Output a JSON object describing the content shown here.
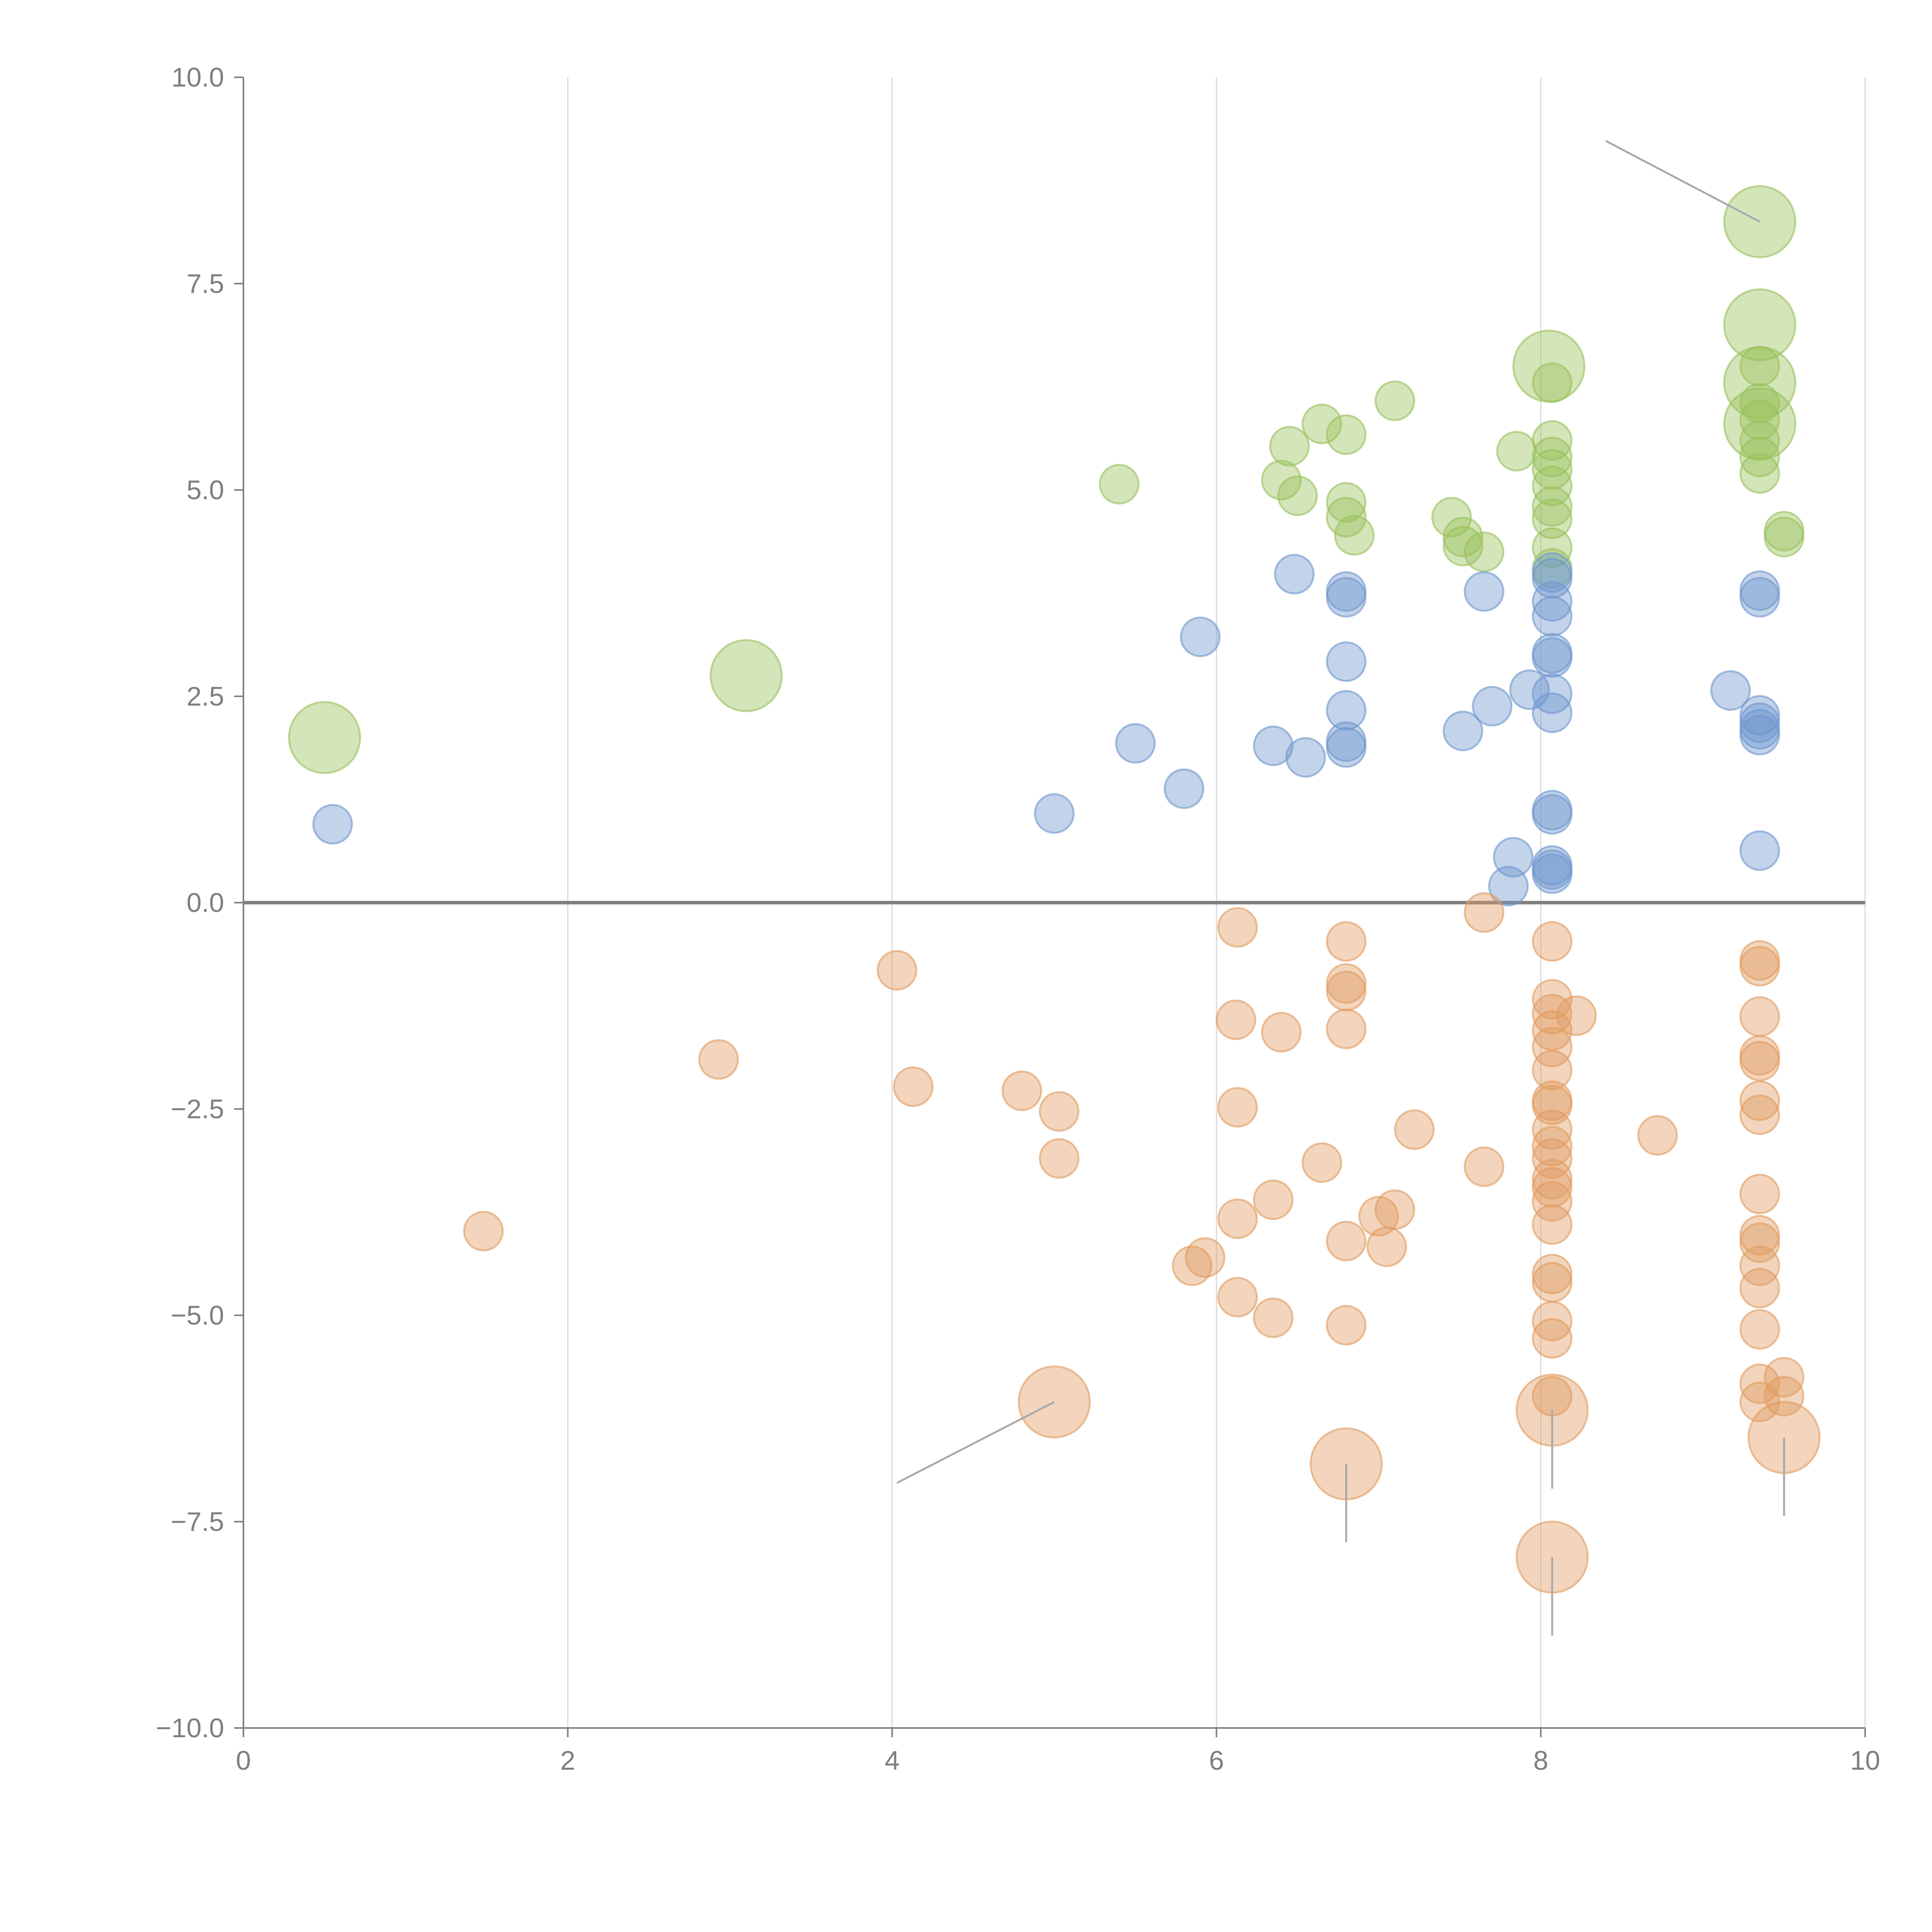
{
  "chart_data": {
    "type": "scatter",
    "title": "",
    "xlabel": "",
    "ylabel": "",
    "xlim": [
      0,
      10
    ],
    "ylim": [
      -10,
      10
    ],
    "x_ticks": [
      "0",
      "2",
      "4",
      "6",
      "8",
      "10"
    ],
    "y_ticks": [
      "10.0",
      "7.5",
      "5.0",
      "2.5",
      "0.0",
      "−2.5",
      "−5.0",
      "−7.5",
      "−10.0"
    ],
    "grid": "vertical",
    "reference_line_y": 0,
    "series": [
      {
        "name": "green",
        "color": "#98c05a",
        "points": [
          {
            "x": 0.5,
            "y": 2.0,
            "size": 2
          },
          {
            "x": 3.1,
            "y": 2.75,
            "size": 2
          },
          {
            "x": 5.4,
            "y": 5.07,
            "size": 1
          },
          {
            "x": 6.4,
            "y": 5.12,
            "size": 1
          },
          {
            "x": 6.45,
            "y": 5.53,
            "size": 1
          },
          {
            "x": 6.5,
            "y": 4.93,
            "size": 1
          },
          {
            "x": 6.65,
            "y": 5.8,
            "size": 1
          },
          {
            "x": 6.8,
            "y": 5.67,
            "size": 1
          },
          {
            "x": 6.8,
            "y": 4.85,
            "size": 1
          },
          {
            "x": 6.8,
            "y": 4.67,
            "size": 1
          },
          {
            "x": 6.85,
            "y": 4.45,
            "size": 1
          },
          {
            "x": 7.1,
            "y": 6.08,
            "size": 1
          },
          {
            "x": 7.45,
            "y": 4.67,
            "size": 1
          },
          {
            "x": 7.52,
            "y": 4.43,
            "size": 1
          },
          {
            "x": 7.52,
            "y": 4.32,
            "size": 1
          },
          {
            "x": 7.65,
            "y": 4.25,
            "size": 1
          },
          {
            "x": 7.85,
            "y": 5.47,
            "size": 1
          },
          {
            "x": 8.05,
            "y": 6.5,
            "size": 2
          },
          {
            "x": 8.07,
            "y": 6.3,
            "size": 1
          },
          {
            "x": 8.07,
            "y": 5.6,
            "size": 1
          },
          {
            "x": 8.07,
            "y": 5.4,
            "size": 1
          },
          {
            "x": 8.07,
            "y": 5.25,
            "size": 1
          },
          {
            "x": 8.07,
            "y": 5.05,
            "size": 1
          },
          {
            "x": 8.07,
            "y": 4.8,
            "size": 1
          },
          {
            "x": 8.07,
            "y": 4.65,
            "size": 1
          },
          {
            "x": 8.07,
            "y": 4.3,
            "size": 1
          },
          {
            "x": 8.07,
            "y": 4.05,
            "size": 1
          },
          {
            "x": 9.35,
            "y": 8.25,
            "size": 2
          },
          {
            "x": 9.35,
            "y": 7.0,
            "size": 2
          },
          {
            "x": 9.35,
            "y": 6.3,
            "size": 2
          },
          {
            "x": 9.35,
            "y": 5.8,
            "size": 2
          },
          {
            "x": 9.35,
            "y": 6.5,
            "size": 1
          },
          {
            "x": 9.35,
            "y": 6.05,
            "size": 1
          },
          {
            "x": 9.35,
            "y": 5.85,
            "size": 1
          },
          {
            "x": 9.35,
            "y": 5.6,
            "size": 1
          },
          {
            "x": 9.35,
            "y": 5.4,
            "size": 1
          },
          {
            "x": 9.35,
            "y": 5.2,
            "size": 1
          },
          {
            "x": 9.5,
            "y": 4.5,
            "size": 1
          },
          {
            "x": 9.5,
            "y": 4.43,
            "size": 1
          }
        ]
      },
      {
        "name": "blue",
        "color": "#6e96cd",
        "points": [
          {
            "x": 0.55,
            "y": 0.95,
            "size": 1
          },
          {
            "x": 5.0,
            "y": 1.08,
            "size": 1
          },
          {
            "x": 5.5,
            "y": 1.93,
            "size": 1
          },
          {
            "x": 5.8,
            "y": 1.38,
            "size": 1
          },
          {
            "x": 5.9,
            "y": 3.22,
            "size": 1
          },
          {
            "x": 6.35,
            "y": 1.9,
            "size": 1
          },
          {
            "x": 6.48,
            "y": 3.98,
            "size": 1
          },
          {
            "x": 6.55,
            "y": 1.76,
            "size": 1
          },
          {
            "x": 6.8,
            "y": 3.77,
            "size": 1
          },
          {
            "x": 6.8,
            "y": 3.7,
            "size": 1
          },
          {
            "x": 6.8,
            "y": 2.92,
            "size": 1
          },
          {
            "x": 6.8,
            "y": 2.33,
            "size": 1
          },
          {
            "x": 6.8,
            "y": 1.95,
            "size": 1
          },
          {
            "x": 6.8,
            "y": 1.88,
            "size": 1
          },
          {
            "x": 7.52,
            "y": 2.08,
            "size": 1
          },
          {
            "x": 7.65,
            "y": 3.77,
            "size": 1
          },
          {
            "x": 7.7,
            "y": 2.38,
            "size": 1
          },
          {
            "x": 7.8,
            "y": 0.2,
            "size": 1
          },
          {
            "x": 7.83,
            "y": 0.55,
            "size": 1
          },
          {
            "x": 7.93,
            "y": 2.58,
            "size": 1
          },
          {
            "x": 8.07,
            "y": 4.0,
            "size": 1
          },
          {
            "x": 8.07,
            "y": 3.93,
            "size": 1
          },
          {
            "x": 8.07,
            "y": 3.65,
            "size": 1
          },
          {
            "x": 8.07,
            "y": 3.47,
            "size": 1
          },
          {
            "x": 8.07,
            "y": 3.02,
            "size": 1
          },
          {
            "x": 8.07,
            "y": 2.97,
            "size": 1
          },
          {
            "x": 8.07,
            "y": 2.53,
            "size": 1
          },
          {
            "x": 8.07,
            "y": 2.3,
            "size": 1
          },
          {
            "x": 8.07,
            "y": 1.12,
            "size": 1
          },
          {
            "x": 8.07,
            "y": 1.07,
            "size": 1
          },
          {
            "x": 8.07,
            "y": 0.45,
            "size": 1
          },
          {
            "x": 8.07,
            "y": 0.4,
            "size": 1
          },
          {
            "x": 8.07,
            "y": 0.35,
            "size": 1
          },
          {
            "x": 9.17,
            "y": 2.57,
            "size": 1
          },
          {
            "x": 9.35,
            "y": 3.78,
            "size": 1
          },
          {
            "x": 9.35,
            "y": 3.7,
            "size": 1
          },
          {
            "x": 9.35,
            "y": 2.27,
            "size": 1
          },
          {
            "x": 9.35,
            "y": 2.18,
            "size": 1
          },
          {
            "x": 9.35,
            "y": 2.1,
            "size": 1
          },
          {
            "x": 9.35,
            "y": 2.03,
            "size": 1
          },
          {
            "x": 9.35,
            "y": 0.63,
            "size": 1
          }
        ]
      },
      {
        "name": "orange",
        "color": "#e19b5f",
        "points": [
          {
            "x": 1.48,
            "y": -3.98,
            "size": 1
          },
          {
            "x": 2.93,
            "y": -1.9,
            "size": 1
          },
          {
            "x": 4.03,
            "y": -0.82,
            "size": 1
          },
          {
            "x": 4.13,
            "y": -2.23,
            "size": 1
          },
          {
            "x": 4.8,
            "y": -2.28,
            "size": 1
          },
          {
            "x": 5.03,
            "y": -2.53,
            "size": 1
          },
          {
            "x": 5.03,
            "y": -3.1,
            "size": 1
          },
          {
            "x": 5.0,
            "y": -6.05,
            "size": 2
          },
          {
            "x": 5.85,
            "y": -4.4,
            "size": 1
          },
          {
            "x": 5.93,
            "y": -4.3,
            "size": 1
          },
          {
            "x": 6.12,
            "y": -1.42,
            "size": 1
          },
          {
            "x": 6.13,
            "y": -0.3,
            "size": 1
          },
          {
            "x": 6.13,
            "y": -2.48,
            "size": 1
          },
          {
            "x": 6.13,
            "y": -3.83,
            "size": 1
          },
          {
            "x": 6.13,
            "y": -4.78,
            "size": 1
          },
          {
            "x": 6.35,
            "y": -3.6,
            "size": 1
          },
          {
            "x": 6.35,
            "y": -5.03,
            "size": 1
          },
          {
            "x": 6.4,
            "y": -1.57,
            "size": 1
          },
          {
            "x": 6.65,
            "y": -3.15,
            "size": 1
          },
          {
            "x": 6.8,
            "y": -0.47,
            "size": 1
          },
          {
            "x": 6.8,
            "y": -0.98,
            "size": 1
          },
          {
            "x": 6.8,
            "y": -1.07,
            "size": 1
          },
          {
            "x": 6.8,
            "y": -1.53,
            "size": 1
          },
          {
            "x": 6.8,
            "y": -4.1,
            "size": 1
          },
          {
            "x": 6.8,
            "y": -5.12,
            "size": 1
          },
          {
            "x": 6.8,
            "y": -6.8,
            "size": 2
          },
          {
            "x": 7.0,
            "y": -3.8,
            "size": 1
          },
          {
            "x": 7.05,
            "y": -4.17,
            "size": 1
          },
          {
            "x": 7.1,
            "y": -3.72,
            "size": 1
          },
          {
            "x": 7.22,
            "y": -2.75,
            "size": 1
          },
          {
            "x": 7.65,
            "y": -0.12,
            "size": 1
          },
          {
            "x": 7.65,
            "y": -3.2,
            "size": 1
          },
          {
            "x": 8.07,
            "y": -0.47,
            "size": 1
          },
          {
            "x": 8.07,
            "y": -1.17,
            "size": 1
          },
          {
            "x": 8.07,
            "y": -1.35,
            "size": 1
          },
          {
            "x": 8.07,
            "y": -1.55,
            "size": 1
          },
          {
            "x": 8.07,
            "y": -1.75,
            "size": 1
          },
          {
            "x": 8.07,
            "y": -2.03,
            "size": 1
          },
          {
            "x": 8.07,
            "y": -2.4,
            "size": 1
          },
          {
            "x": 8.07,
            "y": -2.45,
            "size": 1
          },
          {
            "x": 8.07,
            "y": -2.75,
            "size": 1
          },
          {
            "x": 8.07,
            "y": -2.95,
            "size": 1
          },
          {
            "x": 8.07,
            "y": -3.1,
            "size": 1
          },
          {
            "x": 8.07,
            "y": -3.35,
            "size": 1
          },
          {
            "x": 8.07,
            "y": -3.45,
            "size": 1
          },
          {
            "x": 8.07,
            "y": -3.62,
            "size": 1
          },
          {
            "x": 8.07,
            "y": -3.9,
            "size": 1
          },
          {
            "x": 8.07,
            "y": -4.5,
            "size": 1
          },
          {
            "x": 8.07,
            "y": -4.6,
            "size": 1
          },
          {
            "x": 8.07,
            "y": -5.07,
            "size": 1
          },
          {
            "x": 8.07,
            "y": -5.28,
            "size": 1
          },
          {
            "x": 8.07,
            "y": -5.98,
            "size": 1
          },
          {
            "x": 8.07,
            "y": -6.15,
            "size": 2
          },
          {
            "x": 8.07,
            "y": -7.93,
            "size": 2
          },
          {
            "x": 8.22,
            "y": -1.37,
            "size": 1
          },
          {
            "x": 8.72,
            "y": -2.82,
            "size": 1
          },
          {
            "x": 9.35,
            "y": -0.7,
            "size": 1
          },
          {
            "x": 9.35,
            "y": -0.77,
            "size": 1
          },
          {
            "x": 9.35,
            "y": -1.38,
            "size": 1
          },
          {
            "x": 9.35,
            "y": -1.85,
            "size": 1
          },
          {
            "x": 9.35,
            "y": -1.92,
            "size": 1
          },
          {
            "x": 9.35,
            "y": -2.4,
            "size": 1
          },
          {
            "x": 9.35,
            "y": -2.57,
            "size": 1
          },
          {
            "x": 9.35,
            "y": -3.53,
            "size": 1
          },
          {
            "x": 9.35,
            "y": -4.03,
            "size": 1
          },
          {
            "x": 9.35,
            "y": -4.12,
            "size": 1
          },
          {
            "x": 9.35,
            "y": -4.4,
            "size": 1
          },
          {
            "x": 9.35,
            "y": -4.67,
            "size": 1
          },
          {
            "x": 9.35,
            "y": -5.17,
            "size": 1
          },
          {
            "x": 9.35,
            "y": -5.83,
            "size": 1
          },
          {
            "x": 9.35,
            "y": -6.05,
            "size": 1
          },
          {
            "x": 9.5,
            "y": -5.75,
            "size": 1
          },
          {
            "x": 9.5,
            "y": -5.98,
            "size": 1
          },
          {
            "x": 9.5,
            "y": -6.48,
            "size": 2
          }
        ]
      }
    ],
    "leader_lines": [
      {
        "x1": 9.35,
        "y1": 8.25,
        "x2": 8.4,
        "y2": 9.23
      },
      {
        "x1": 5.0,
        "y1": -6.05,
        "x2": 4.03,
        "y2": -7.03
      },
      {
        "x1": 6.8,
        "y1": -6.8,
        "x2": 6.8,
        "y2": -7.75
      },
      {
        "x1": 8.07,
        "y1": -6.15,
        "x2": 8.07,
        "y2": -7.1
      },
      {
        "x1": 8.07,
        "y1": -7.93,
        "x2": 8.07,
        "y2": -8.88
      },
      {
        "x1": 9.5,
        "y1": -6.48,
        "x2": 9.5,
        "y2": -7.43
      }
    ]
  }
}
